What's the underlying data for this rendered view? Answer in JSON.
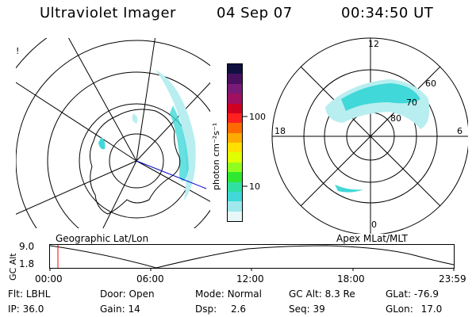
{
  "header": {
    "title": "Ultraviolet Imager",
    "date": "04 Sep 07",
    "time": "00:34:50 UT"
  },
  "left_map": {
    "label": "Geographic Lat/Lon",
    "stray_mark": "!"
  },
  "colorbar": {
    "unit_label": "photon cm⁻²s⁻¹",
    "ticks": [
      "100",
      "10"
    ],
    "colors": [
      "#101040",
      "#4a1060",
      "#7a1a78",
      "#a01060",
      "#d00020",
      "#ff2020",
      "#ff6a00",
      "#ffaa00",
      "#ffe000",
      "#e0ff00",
      "#90ff20",
      "#30e830",
      "#30e0a0",
      "#40d8d8",
      "#a0e8ec",
      "#e8f8f8"
    ]
  },
  "polar_plot": {
    "label": "Apex MLat/MLT",
    "mlt_labels": {
      "top": "12",
      "left": "18",
      "right": "6",
      "bottom": "0"
    },
    "lat_labels": [
      "60",
      "70",
      "80"
    ]
  },
  "altitude_plot": {
    "ylabel": "GC Alt",
    "yticks": [
      "9.0",
      "1.8"
    ],
    "xticks": [
      "00:00",
      "06:00",
      "12:00",
      "18:00",
      "23:59"
    ],
    "marker_color": "#ff0000"
  },
  "info": {
    "flt_label": "Flt:",
    "flt_value": "LBHL",
    "ip_label": "IP:",
    "ip_value": "36.0",
    "door_label": "Door:",
    "door_value": "Open",
    "gain_label": "Gain:",
    "gain_value": "14",
    "mode_label": "Mode:",
    "mode_value": "Normal",
    "dsp_label": "Dsp:",
    "dsp_value": "2.6",
    "gcalt_label": "GC Alt:",
    "gcalt_value": "8.3 Re",
    "seq_label": "Seq:",
    "seq_value": "39",
    "glat_label": "GLat:",
    "glat_value": "-76.9",
    "glon_label": "GLon:",
    "glon_value": "17.0"
  },
  "colors": {
    "auroral_cyan": "#40d8d8",
    "auroral_light": "#b8eef0",
    "line_blue": "#0000cc"
  }
}
